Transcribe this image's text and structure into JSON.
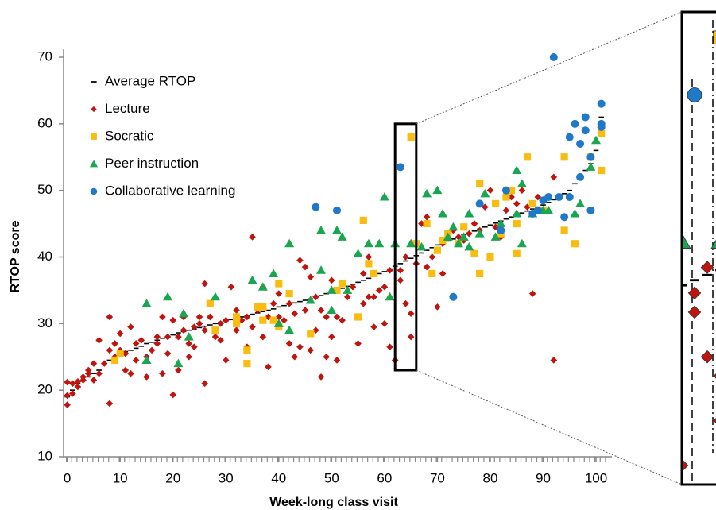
{
  "chart_data": {
    "type": "scatter",
    "x_label": "Week-long class visit",
    "y_label": "RTOP  score",
    "xlim": [
      -1,
      103
    ],
    "ylim": [
      10,
      70
    ],
    "xticks": [
      0,
      10,
      20,
      30,
      40,
      50,
      60,
      70,
      80,
      90,
      100
    ],
    "yticks": [
      10,
      20,
      30,
      40,
      50,
      60,
      70
    ],
    "grid": false,
    "legend": "upper left",
    "inset": {
      "xlim": [
        62,
        66
      ],
      "ylim": [
        23,
        60
      ]
    },
    "series": [
      {
        "name": "Average RTOP",
        "color": "#000000",
        "marker": "dash",
        "x": [
          0,
          1,
          2,
          3,
          4,
          5,
          6,
          7,
          8,
          9,
          10,
          11,
          12,
          13,
          14,
          15,
          16,
          17,
          18,
          19,
          20,
          21,
          22,
          23,
          24,
          25,
          26,
          27,
          28,
          29,
          30,
          31,
          32,
          33,
          34,
          35,
          36,
          37,
          38,
          39,
          40,
          41,
          42,
          43,
          44,
          45,
          46,
          47,
          48,
          49,
          50,
          51,
          52,
          53,
          54,
          55,
          56,
          57,
          58,
          59,
          60,
          61,
          62,
          63,
          64,
          65,
          66,
          67,
          68,
          69,
          70,
          71,
          72,
          73,
          74,
          75,
          76,
          77,
          78,
          79,
          80,
          81,
          82,
          83,
          84,
          85,
          86,
          87,
          88,
          89,
          90,
          91,
          92,
          93,
          94,
          95,
          96,
          97,
          98,
          99,
          100,
          101
        ],
        "values": [
          19,
          20,
          21,
          21.5,
          22,
          22.5,
          23,
          24,
          24.5,
          25,
          25.5,
          25.8,
          26,
          26.3,
          26.6,
          27,
          27.2,
          27.5,
          27.8,
          28,
          28.3,
          28.6,
          28.8,
          29,
          29.2,
          29.4,
          29.6,
          29.8,
          30,
          30.2,
          30.4,
          30.6,
          30.8,
          31,
          31.2,
          31.4,
          31.6,
          31.8,
          32,
          32.2,
          32.5,
          32.7,
          32.9,
          33.1,
          33.3,
          33.5,
          33.7,
          34,
          34.2,
          34.5,
          34.8,
          35,
          35.3,
          35.6,
          35.9,
          36.2,
          36.5,
          36.8,
          37.1,
          37.5,
          37.8,
          38.2,
          38.6,
          39,
          39.4,
          39.8,
          40.2,
          40.6,
          41,
          41.4,
          41.8,
          42.1,
          42.4,
          42.7,
          43,
          43.3,
          43.6,
          43.9,
          44.2,
          44.5,
          44.8,
          45.1,
          45.4,
          45.7,
          46,
          46.3,
          46.6,
          46.9,
          47.2,
          47.5,
          47.8,
          48.2,
          48.6,
          49,
          49.5,
          50,
          51,
          52,
          53,
          54,
          56,
          61
        ]
      },
      {
        "name": "Lecture",
        "color": "#c0140f",
        "marker": "diamond",
        "x": [
          0,
          0,
          0,
          1,
          1,
          2,
          2,
          3,
          3,
          4,
          4,
          5,
          5,
          6,
          6,
          7,
          8,
          8,
          8,
          9,
          9,
          10,
          10,
          11,
          11,
          12,
          12,
          13,
          13,
          14,
          15,
          15,
          16,
          17,
          17,
          18,
          18,
          19,
          19,
          20,
          20,
          21,
          21,
          22,
          22,
          23,
          23,
          24,
          24,
          25,
          25,
          26,
          26,
          26,
          27,
          28,
          29,
          29,
          30,
          30,
          31,
          32,
          32,
          33,
          34,
          34,
          35,
          35,
          36,
          37,
          37,
          38,
          38,
          39,
          40,
          40,
          41,
          42,
          42,
          43,
          43,
          44,
          44,
          45,
          45,
          46,
          46,
          47,
          47,
          48,
          48,
          49,
          49,
          50,
          50,
          51,
          51,
          52,
          53,
          54,
          55,
          55,
          56,
          56,
          57,
          57,
          58,
          58,
          59,
          60,
          60,
          61,
          61,
          62,
          63,
          63,
          64,
          64,
          65,
          65,
          66,
          67,
          68,
          68,
          69,
          70,
          71,
          71,
          72,
          73,
          74,
          75,
          76,
          77,
          78,
          79,
          80,
          81,
          82,
          83,
          84,
          85,
          86,
          87,
          88,
          89,
          92,
          92
        ],
        "values": [
          17.8,
          19.2,
          21.2,
          19.5,
          21,
          21.3,
          20.5,
          21.5,
          22,
          22.5,
          23,
          21.5,
          24,
          27.5,
          22.5,
          24,
          26,
          31,
          18,
          25,
          27,
          28.5,
          26,
          23,
          25.5,
          29.5,
          22.5,
          27,
          24.5,
          27.5,
          22,
          25,
          26,
          28,
          27,
          22.5,
          31,
          28,
          25.5,
          19.3,
          30.5,
          28,
          23,
          31,
          29,
          27,
          25,
          29.5,
          26.5,
          31,
          30,
          29,
          36,
          21,
          31,
          28,
          30,
          27.5,
          24.5,
          30.5,
          35.5,
          32,
          29,
          30.5,
          26.5,
          31,
          43,
          29.5,
          32,
          28,
          35.5,
          23.5,
          31,
          33,
          34.5,
          31,
          30.5,
          27,
          33,
          31.5,
          25,
          39.5,
          26.5,
          38.5,
          32,
          37,
          26,
          34,
          29,
          22,
          32,
          31,
          25,
          28,
          36.5,
          24.5,
          31,
          30.5,
          34,
          35.5,
          31,
          27,
          37.5,
          33,
          40,
          34,
          34,
          29.5,
          35,
          35.5,
          30,
          26.5,
          38,
          24.5,
          38,
          36.5,
          40,
          33,
          28,
          31.5,
          39,
          45,
          46,
          38.5,
          40,
          32.5,
          37.5,
          42,
          43,
          44,
          43,
          42.5,
          43.5,
          45,
          44,
          47.5,
          50,
          44.5,
          43,
          47,
          49,
          48,
          50,
          47.5,
          34.5,
          49,
          24.5,
          52
        ]
      },
      {
        "name": "Socratic",
        "color": "#f9bd12",
        "marker": "square",
        "x": [
          9,
          10,
          27,
          28,
          32,
          32,
          34,
          34,
          36,
          37,
          37,
          39,
          40,
          40,
          42,
          46,
          51,
          52,
          55,
          56,
          57,
          58,
          65,
          66,
          68,
          69,
          70,
          71,
          72,
          74,
          75,
          77,
          78,
          78,
          80,
          81,
          82,
          83,
          84,
          85,
          85,
          87,
          88,
          90,
          94,
          94,
          96,
          99,
          101,
          101
        ],
        "values": [
          24.5,
          25.5,
          33,
          29,
          31,
          30,
          26,
          24,
          32.5,
          30.5,
          32.5,
          30.5,
          29.5,
          36,
          34.5,
          28.5,
          35,
          36,
          31,
          45.5,
          39,
          37.5,
          58,
          42,
          45,
          37.5,
          41,
          42.5,
          43.5,
          42,
          44.5,
          40.5,
          37.5,
          51,
          40,
          48,
          43.5,
          49,
          50,
          40.5,
          45,
          55,
          48,
          47,
          44,
          55,
          42,
          55,
          53,
          58.5
        ]
      },
      {
        "name": "Peer instruction",
        "color": "#1aa650",
        "marker": "triangle",
        "x": [
          15,
          15,
          19,
          21,
          22,
          23,
          28,
          35,
          37,
          39,
          40,
          42,
          42,
          46,
          48,
          48,
          50,
          50,
          51,
          52,
          53,
          55,
          57,
          59,
          60,
          61,
          62,
          65,
          67,
          68,
          70,
          71,
          72,
          73,
          74,
          75,
          76,
          76,
          78,
          79,
          81,
          82,
          85,
          85,
          86,
          86,
          88,
          90,
          91,
          96,
          97,
          99,
          100
        ],
        "values": [
          33,
          24.5,
          34,
          24,
          31.5,
          28,
          34,
          36.5,
          35.5,
          37.5,
          30,
          42,
          29,
          33.5,
          44,
          38,
          35,
          32,
          44,
          43,
          35,
          40.5,
          42,
          42,
          49,
          34,
          42,
          42,
          41.5,
          49.5,
          50,
          46.5,
          43,
          44.5,
          42,
          43,
          46.5,
          41.5,
          43.5,
          49.5,
          43,
          45,
          46.5,
          53,
          51,
          42,
          46.5,
          47,
          47,
          46.5,
          48,
          53.5,
          57.5
        ]
      },
      {
        "name": "Collaborative learning",
        "color": "#1f78c8",
        "marker": "circle",
        "x": [
          47,
          51,
          63,
          73,
          78,
          82,
          83,
          88,
          89,
          90,
          91,
          92,
          93,
          94,
          95,
          95,
          96,
          97,
          97,
          98,
          98,
          99,
          99,
          101,
          101,
          101
        ],
        "values": [
          47.5,
          47,
          53.5,
          34,
          48,
          44,
          50,
          46.5,
          47,
          48.5,
          49,
          70,
          49,
          46,
          49,
          58,
          60,
          57,
          52,
          59,
          61,
          55,
          47,
          63,
          60,
          59.5
        ]
      }
    ]
  }
}
